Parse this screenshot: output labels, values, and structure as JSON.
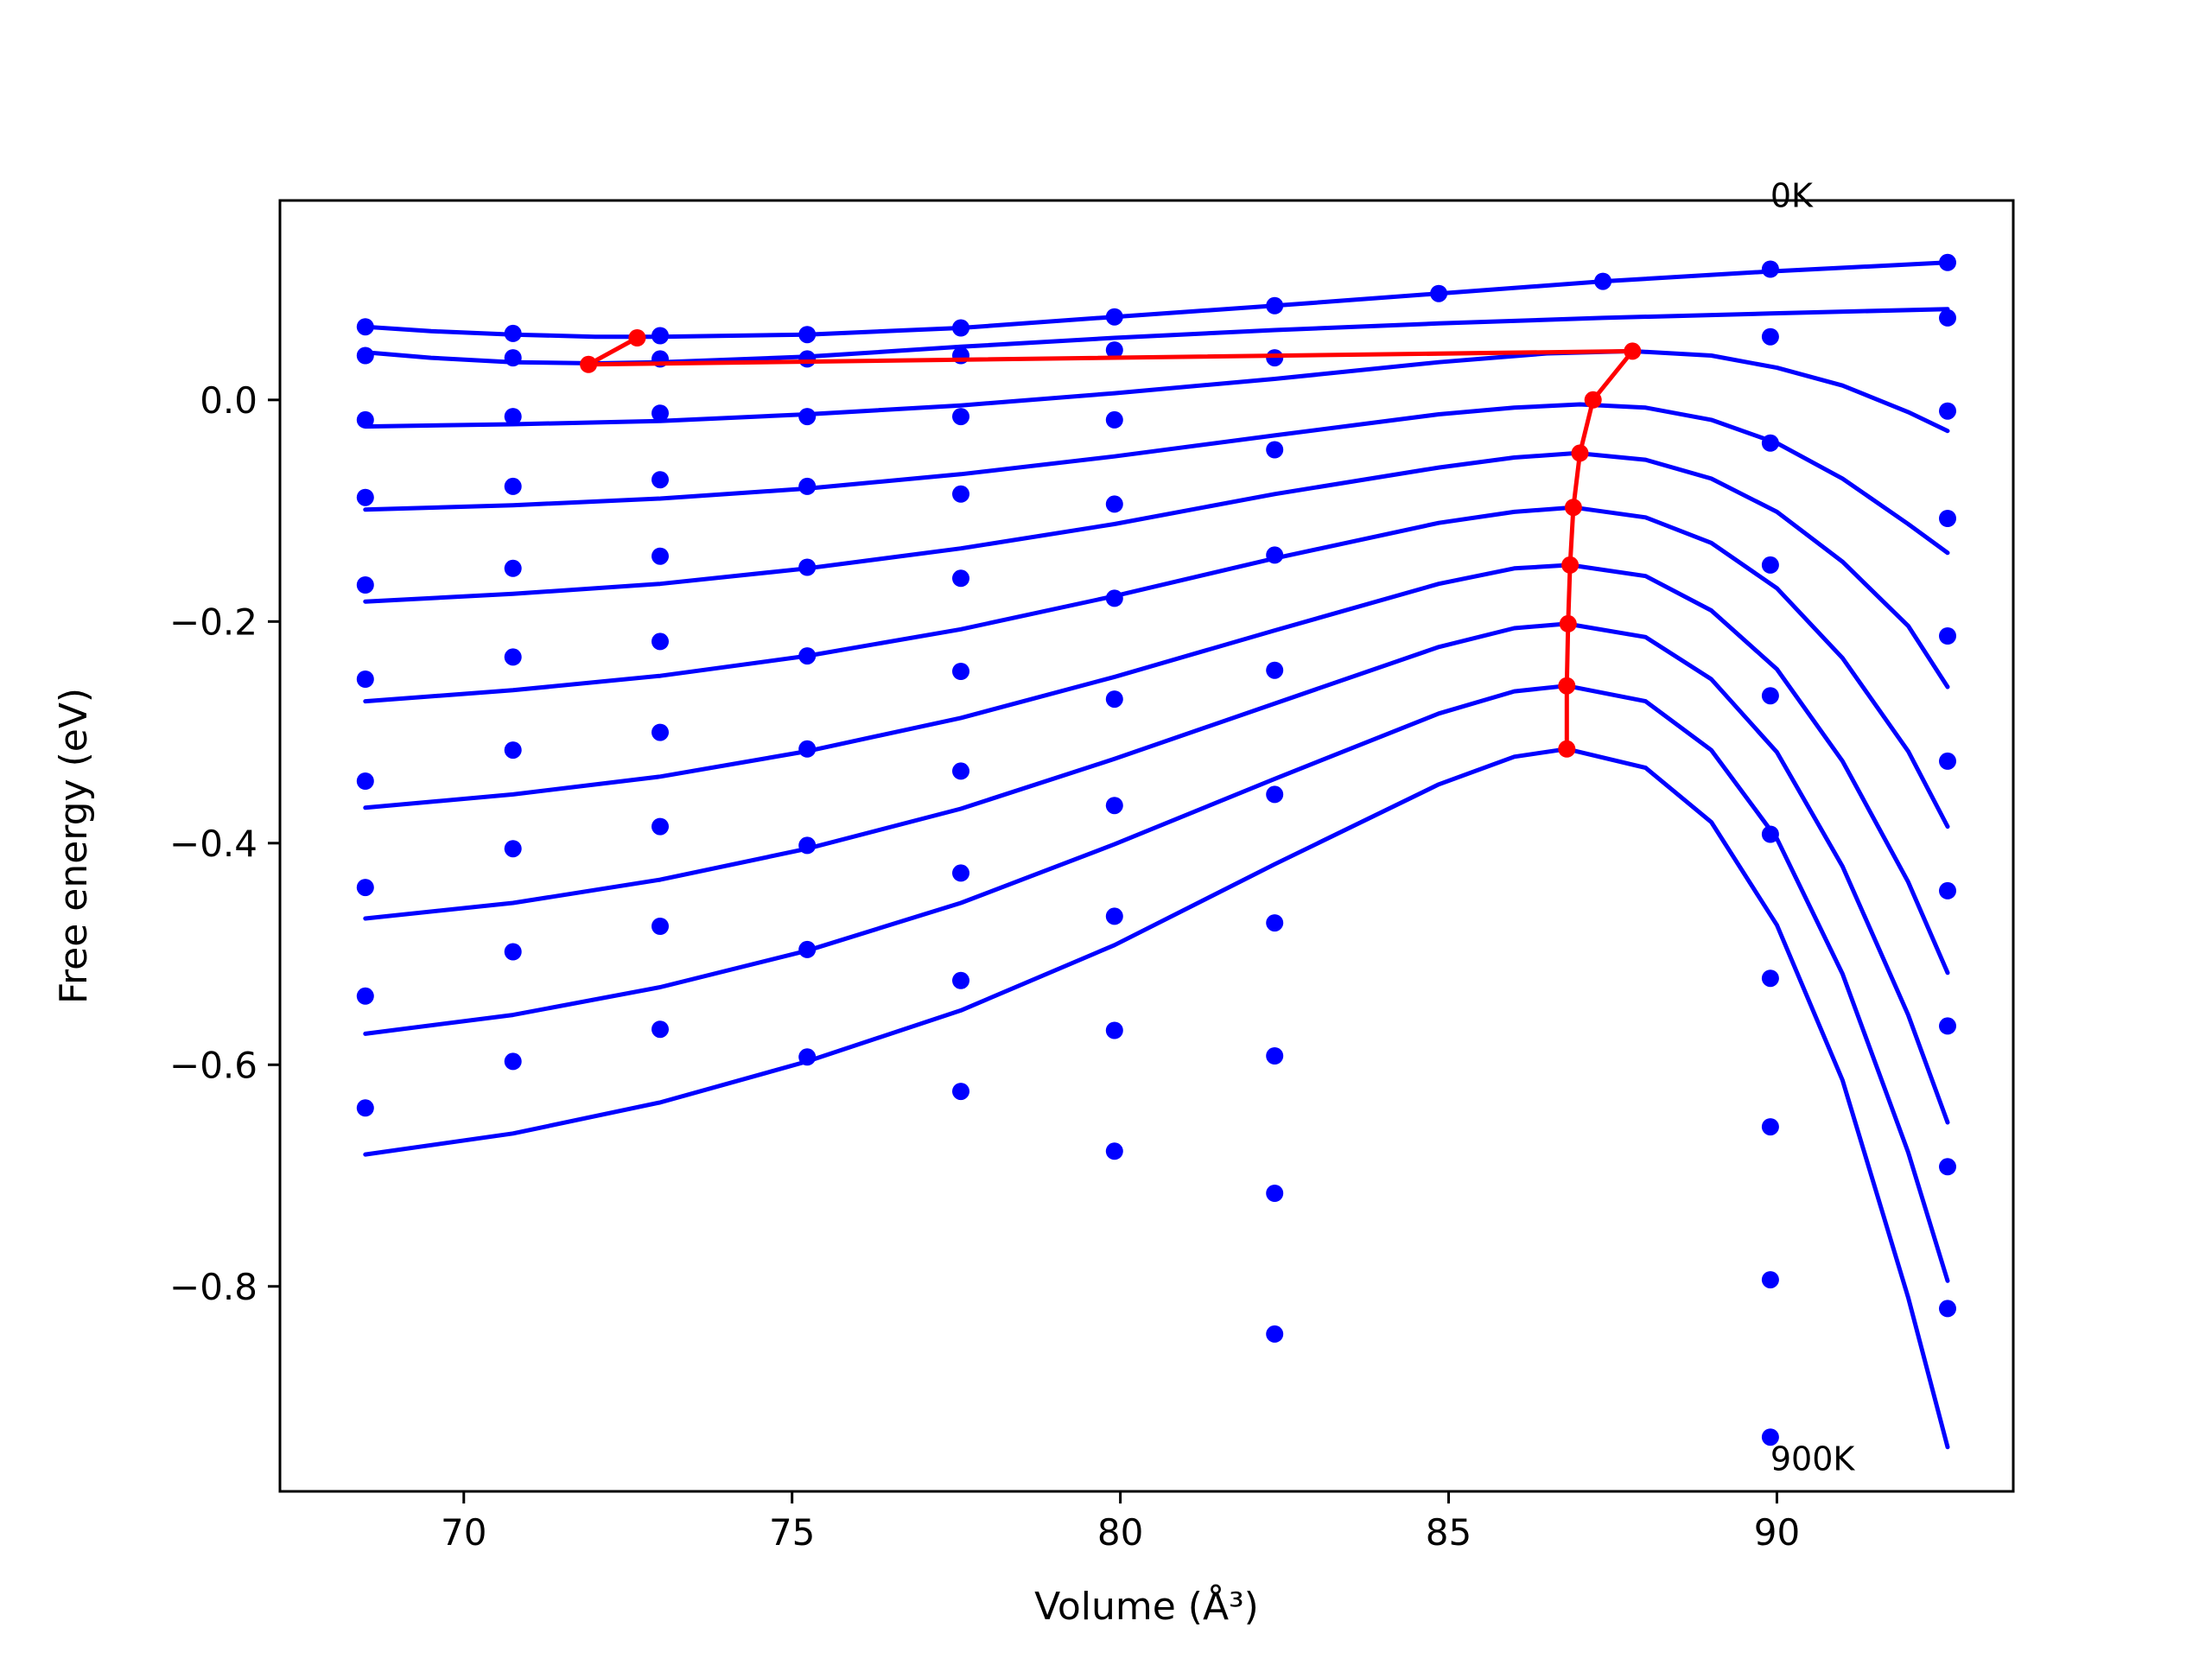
{
  "chart_data": {
    "type": "scatter",
    "xlabel": "Volume (Å³)",
    "ylabel": "Free energy (eV)",
    "xlim": [
      67.2,
      93.6
    ],
    "ylim": [
      -0.985,
      0.18
    ],
    "x_ticks": [
      70,
      75,
      80,
      85,
      90
    ],
    "x_tick_labels": [
      "70",
      "75",
      "80",
      "85",
      "90"
    ],
    "y_ticks": [
      0.0,
      -0.2,
      -0.4,
      -0.6,
      -0.8
    ],
    "y_tick_labels": [
      "0.0",
      "−0.2",
      "−0.4",
      "−0.6",
      "−0.8"
    ],
    "annotations": [
      {
        "text": "0K",
        "x": 89.9,
        "y": 0.185
      },
      {
        "text": "900K",
        "x": 89.9,
        "y": -0.955
      }
    ],
    "points_color": "#0000ff",
    "fit_color": "#0000ff",
    "path_color": "#ff0000",
    "point_series": [
      {
        "x": [
          68.5,
          70.75,
          72.99,
          75.23,
          77.57,
          79.91,
          82.35,
          84.85,
          87.35,
          89.9,
          92.6
        ],
        "y": [
          0.066,
          0.06,
          0.058,
          0.059,
          0.065,
          0.075,
          0.085,
          0.096,
          0.107,
          0.118,
          0.124
        ]
      },
      {
        "x": [
          68.5,
          70.75,
          72.99,
          75.23,
          77.57,
          79.91,
          82.35,
          89.9,
          92.6
        ],
        "y": [
          0.04,
          0.038,
          0.037,
          0.037,
          0.04,
          0.045,
          0.038,
          0.057,
          0.074
        ]
      },
      {
        "x": [
          68.5,
          70.75,
          72.99,
          75.23,
          77.57,
          79.91,
          82.35,
          89.9,
          92.6
        ],
        "y": [
          -0.018,
          -0.015,
          -0.012,
          -0.015,
          -0.015,
          -0.018,
          -0.045,
          -0.039,
          -0.01
        ]
      },
      {
        "x": [
          68.5,
          70.75,
          72.99,
          75.23,
          77.57,
          79.91,
          82.35,
          89.9,
          92.6
        ],
        "y": [
          -0.088,
          -0.078,
          -0.072,
          -0.078,
          -0.085,
          -0.094,
          -0.14,
          -0.149,
          -0.107
        ]
      },
      {
        "x": [
          68.5,
          70.75,
          72.99,
          75.23,
          77.57,
          79.91,
          82.35,
          89.9,
          92.6
        ],
        "y": [
          -0.167,
          -0.152,
          -0.141,
          -0.151,
          -0.161,
          -0.179,
          -0.244,
          -0.267,
          -0.213
        ]
      },
      {
        "x": [
          68.5,
          70.75,
          72.99,
          75.23,
          77.57,
          79.91,
          82.35,
          89.9,
          92.6
        ],
        "y": [
          -0.252,
          -0.232,
          -0.218,
          -0.231,
          -0.245,
          -0.27,
          -0.356,
          -0.392,
          -0.326
        ]
      },
      {
        "x": [
          68.5,
          70.75,
          72.99,
          75.23,
          77.57,
          79.91,
          82.35,
          89.9,
          92.6
        ],
        "y": [
          -0.344,
          -0.316,
          -0.3,
          -0.315,
          -0.335,
          -0.366,
          -0.472,
          -0.522,
          -0.443
        ]
      },
      {
        "x": [
          68.5,
          70.75,
          72.99,
          75.23,
          77.57,
          79.91,
          82.35,
          89.9,
          92.6
        ],
        "y": [
          -0.44,
          -0.405,
          -0.385,
          -0.402,
          -0.427,
          -0.466,
          -0.592,
          -0.656,
          -0.565
        ]
      },
      {
        "x": [
          68.5,
          70.75,
          72.99,
          75.23,
          77.57,
          79.91,
          82.35,
          89.9,
          92.6
        ],
        "y": [
          -0.538,
          -0.498,
          -0.475,
          -0.496,
          -0.524,
          -0.569,
          -0.716,
          -0.794,
          -0.692
        ]
      },
      {
        "x": [
          68.5,
          70.75,
          72.99,
          75.23,
          77.57,
          79.91,
          82.35,
          89.9,
          92.6
        ],
        "y": [
          -0.639,
          -0.597,
          -0.568,
          -0.593,
          -0.624,
          -0.678,
          -0.843,
          -0.936,
          -0.82
        ]
      }
    ],
    "fit_curves": [
      {
        "x": [
          68.5,
          69.5,
          70.75,
          72.0,
          72.99,
          75.23,
          77.57,
          79.91,
          82.35,
          84.85,
          87.35,
          89.9,
          92.6
        ],
        "y": [
          0.066,
          0.062,
          0.059,
          0.057,
          0.057,
          0.059,
          0.065,
          0.075,
          0.085,
          0.096,
          0.107,
          0.116,
          0.124
        ]
      },
      {
        "x": [
          68.5,
          69.5,
          70.75,
          72.0,
          72.99,
          75.23,
          77.57,
          79.91,
          82.35,
          84.85,
          87.35,
          89.9,
          92.6
        ],
        "y": [
          0.043,
          0.038,
          0.034,
          0.033,
          0.034,
          0.039,
          0.048,
          0.056,
          0.063,
          0.069,
          0.074,
          0.078,
          0.082
        ]
      },
      {
        "x": [
          68.5,
          70.75,
          72.99,
          75.23,
          77.57,
          79.91,
          82.35,
          84.85,
          86.5,
          87.8,
          89.0,
          90.0,
          91.0,
          92.0,
          92.6
        ],
        "y": [
          -0.024,
          -0.022,
          -0.019,
          -0.013,
          -0.005,
          0.006,
          0.019,
          0.034,
          0.042,
          0.044,
          0.04,
          0.029,
          0.013,
          -0.011,
          -0.028
        ]
      },
      {
        "x": [
          68.5,
          70.75,
          72.99,
          75.23,
          77.57,
          79.91,
          82.35,
          84.85,
          86.0,
          87.0,
          88.0,
          89.0,
          90.0,
          91.0,
          92.0,
          92.6
        ],
        "y": [
          -0.099,
          -0.095,
          -0.089,
          -0.08,
          -0.067,
          -0.051,
          -0.032,
          -0.013,
          -0.007,
          -0.004,
          -0.007,
          -0.018,
          -0.039,
          -0.071,
          -0.112,
          -0.138
        ]
      },
      {
        "x": [
          68.5,
          70.75,
          72.99,
          75.23,
          77.57,
          79.91,
          82.35,
          84.85,
          86.0,
          86.95,
          88.0,
          89.0,
          90.0,
          91.0,
          92.0,
          92.6
        ],
        "y": [
          -0.182,
          -0.175,
          -0.166,
          -0.152,
          -0.134,
          -0.112,
          -0.085,
          -0.061,
          -0.052,
          -0.048,
          -0.054,
          -0.071,
          -0.101,
          -0.146,
          -0.204,
          -0.259
        ]
      },
      {
        "x": [
          68.5,
          70.75,
          72.99,
          75.23,
          77.57,
          79.91,
          82.35,
          84.85,
          86.0,
          86.9,
          88.0,
          89.0,
          90.0,
          91.0,
          92.0,
          92.6
        ],
        "y": [
          -0.272,
          -0.262,
          -0.249,
          -0.231,
          -0.207,
          -0.177,
          -0.143,
          -0.111,
          -0.101,
          -0.097,
          -0.106,
          -0.129,
          -0.17,
          -0.233,
          -0.317,
          -0.385
        ]
      },
      {
        "x": [
          68.5,
          70.75,
          72.99,
          75.23,
          77.57,
          79.91,
          82.35,
          84.85,
          86.0,
          86.85,
          88.0,
          89.0,
          90.0,
          91.0,
          92.0,
          92.6
        ],
        "y": [
          -0.368,
          -0.356,
          -0.34,
          -0.317,
          -0.287,
          -0.25,
          -0.208,
          -0.166,
          -0.152,
          -0.149,
          -0.159,
          -0.19,
          -0.243,
          -0.326,
          -0.435,
          -0.517
        ]
      },
      {
        "x": [
          68.5,
          70.75,
          72.99,
          75.23,
          77.57,
          79.91,
          82.35,
          84.85,
          86.0,
          86.8,
          88.0,
          89.0,
          90.0,
          91.0,
          92.0,
          92.6
        ],
        "y": [
          -0.468,
          -0.454,
          -0.433,
          -0.405,
          -0.369,
          -0.324,
          -0.274,
          -0.223,
          -0.206,
          -0.202,
          -0.214,
          -0.252,
          -0.318,
          -0.421,
          -0.555,
          -0.652
        ]
      },
      {
        "x": [
          68.5,
          70.75,
          72.99,
          75.23,
          77.57,
          79.91,
          82.35,
          84.85,
          86.0,
          86.8,
          88.0,
          89.0,
          90.0,
          91.0,
          92.0,
          92.6
        ],
        "y": [
          -0.572,
          -0.555,
          -0.53,
          -0.497,
          -0.454,
          -0.401,
          -0.342,
          -0.283,
          -0.263,
          -0.258,
          -0.272,
          -0.316,
          -0.396,
          -0.518,
          -0.679,
          -0.795
        ]
      },
      {
        "x": [
          68.5,
          70.75,
          72.99,
          75.23,
          77.57,
          79.91,
          82.35,
          84.85,
          86.0,
          86.8,
          88.0,
          89.0,
          90.0,
          91.0,
          92.0,
          92.6
        ],
        "y": [
          -0.681,
          -0.662,
          -0.634,
          -0.597,
          -0.551,
          -0.492,
          -0.419,
          -0.347,
          -0.322,
          -0.315,
          -0.332,
          -0.381,
          -0.474,
          -0.614,
          -0.81,
          -0.945
        ]
      }
    ],
    "min_path": {
      "x": [
        72.64,
        71.9,
        87.8,
        87.2,
        87.0,
        86.9,
        86.85,
        86.82,
        86.8,
        86.8
      ],
      "y": [
        0.056,
        0.032,
        0.044,
        0.0,
        -0.048,
        -0.097,
        -0.149,
        -0.202,
        -0.258,
        -0.315
      ]
    }
  }
}
